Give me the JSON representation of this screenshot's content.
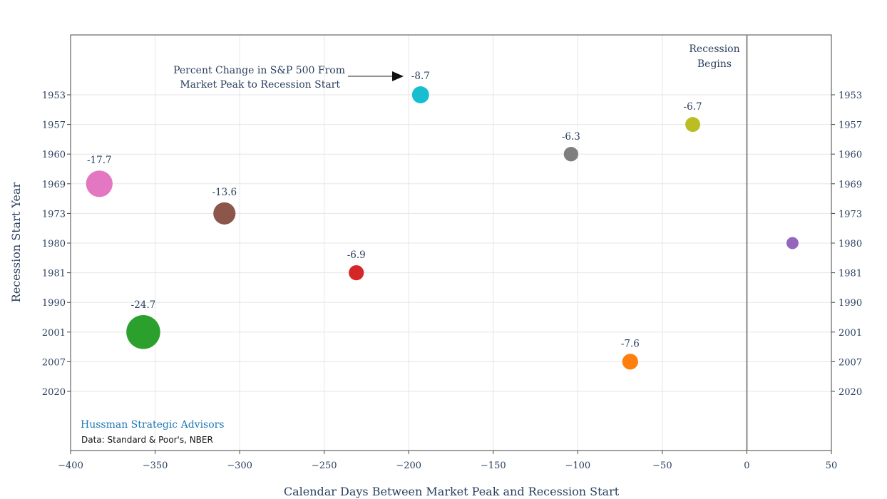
{
  "chart_data": {
    "type": "scatter",
    "title": "",
    "xlabel": "Calendar Days Between Market Peak and Recession Start",
    "ylabel": "Recession Start Year",
    "xlim": [
      -400,
      50
    ],
    "x_ticks": [
      "−400",
      "−350",
      "−300",
      "−250",
      "−200",
      "−150",
      "−100",
      "−50",
      "0",
      "50"
    ],
    "x_tick_values": [
      -400,
      -350,
      -300,
      -250,
      -200,
      -150,
      -100,
      -50,
      0,
      50
    ],
    "y_categories": [
      "1953",
      "1957",
      "1960",
      "1969",
      "1973",
      "1980",
      "1981",
      "1990",
      "2001",
      "2007",
      "2020"
    ],
    "grid": true,
    "bubble_size_meaning": "Percent Change in S&P 500 From Market Peak to Recession Start",
    "points": [
      {
        "year": "1953",
        "x": -193,
        "pct": -8.7,
        "label": "-8.7",
        "color": "#17becf"
      },
      {
        "year": "1957",
        "x": -32,
        "pct": -6.7,
        "label": "-6.7",
        "color": "#bcbd22"
      },
      {
        "year": "1960",
        "x": -104,
        "pct": -6.3,
        "label": "-6.3",
        "color": "#7f7f7f"
      },
      {
        "year": "1969",
        "x": -383,
        "pct": -17.7,
        "label": "-17.7",
        "color": "#e377c2"
      },
      {
        "year": "1973",
        "x": -309,
        "pct": -13.6,
        "label": "-13.6",
        "color": "#8c564b"
      },
      {
        "year": "1980",
        "x": 27,
        "pct": -4.0,
        "label": "",
        "color": "#9467bd"
      },
      {
        "year": "1981",
        "x": -231,
        "pct": -6.9,
        "label": "-6.9",
        "color": "#d62728"
      },
      {
        "year": "2001",
        "x": -357,
        "pct": -24.7,
        "label": "-24.7",
        "color": "#2ca02c"
      },
      {
        "year": "2007",
        "x": -69,
        "pct": -7.6,
        "label": "-7.6",
        "color": "#ff7f0e"
      }
    ],
    "annotations": {
      "bubble_note_line1": "Percent Change in S&P 500 From",
      "bubble_note_line2": "Market Peak to Recession Start",
      "recession_line1": "Recession",
      "recession_line2": "Begins",
      "recession_x": 0
    }
  },
  "brand": "Hussman Strategic Advisors",
  "source": "Data: Standard & Poor's, NBER",
  "colors": {
    "frame": "#444444",
    "grid": "#e6e6e6",
    "recession_line": "#888888",
    "text": "#2a3f5f"
  }
}
